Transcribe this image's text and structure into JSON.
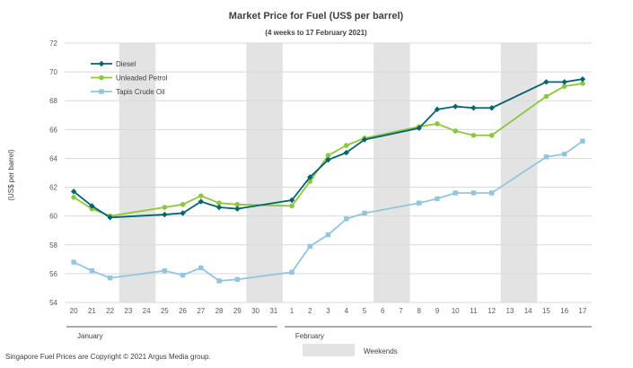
{
  "chart_data": {
    "type": "line",
    "title": "Market Price for Fuel  (US$  per barrel)",
    "subtitle": "(4 weeks to 17 February 2021)",
    "ylabel": "(US$ per barrel)",
    "ylim": [
      54,
      72
    ],
    "yticks": [
      54,
      56,
      58,
      60,
      62,
      64,
      66,
      68,
      70,
      72
    ],
    "ytick_labels": [
      "54",
      "56",
      "58",
      "60",
      "62",
      "64",
      "66",
      "68",
      "70",
      "72"
    ],
    "x_labels": [
      "20",
      "21",
      "22",
      "23",
      "24",
      "25",
      "26",
      "27",
      "28",
      "29",
      "30",
      "31",
      "1",
      "2",
      "3",
      "4",
      "5",
      "6",
      "7",
      "8",
      "9",
      "10",
      "11",
      "12",
      "13",
      "14",
      "15",
      "16",
      "17"
    ],
    "months": [
      {
        "label": "January",
        "from": 0,
        "to": 11
      },
      {
        "label": "February",
        "from": 12,
        "to": 28
      }
    ],
    "weekend_bands": [
      [
        3,
        4
      ],
      [
        10,
        11
      ],
      [
        17,
        18
      ],
      [
        24,
        25
      ]
    ],
    "weekend_label": "Weekends",
    "series": [
      {
        "name": "Diesel",
        "color": "#00656E",
        "marker": "diamond",
        "values": [
          61.7,
          60.7,
          59.9,
          null,
          null,
          60.1,
          60.2,
          61.0,
          60.6,
          60.5,
          null,
          null,
          61.1,
          62.7,
          63.9,
          64.4,
          65.3,
          null,
          null,
          66.1,
          67.4,
          67.6,
          67.5,
          67.5,
          null,
          null,
          69.3,
          69.3,
          69.5
        ]
      },
      {
        "name": "Unleaded Petrol",
        "color": "#8DC63F",
        "marker": "circle",
        "values": [
          61.3,
          60.5,
          60.0,
          null,
          null,
          60.6,
          60.8,
          61.4,
          60.9,
          60.8,
          null,
          null,
          60.7,
          62.4,
          64.2,
          64.9,
          65.4,
          null,
          null,
          66.2,
          66.4,
          65.9,
          65.6,
          65.6,
          null,
          null,
          68.3,
          69.0,
          69.2
        ]
      },
      {
        "name": "Tapis Crude Oil",
        "color": "#92C5E0",
        "marker": "square",
        "values": [
          56.8,
          56.2,
          55.7,
          null,
          null,
          56.2,
          55.9,
          56.4,
          55.5,
          55.6,
          null,
          null,
          56.1,
          57.9,
          58.7,
          59.8,
          60.2,
          null,
          null,
          60.9,
          61.2,
          61.6,
          61.6,
          61.6,
          null,
          null,
          64.1,
          64.3,
          65.2
        ]
      }
    ],
    "legend_position": "top-left"
  },
  "footer": {
    "copyright": "Singapore  Fuel Prices are Copyright  © 2021  Argus Media group."
  }
}
